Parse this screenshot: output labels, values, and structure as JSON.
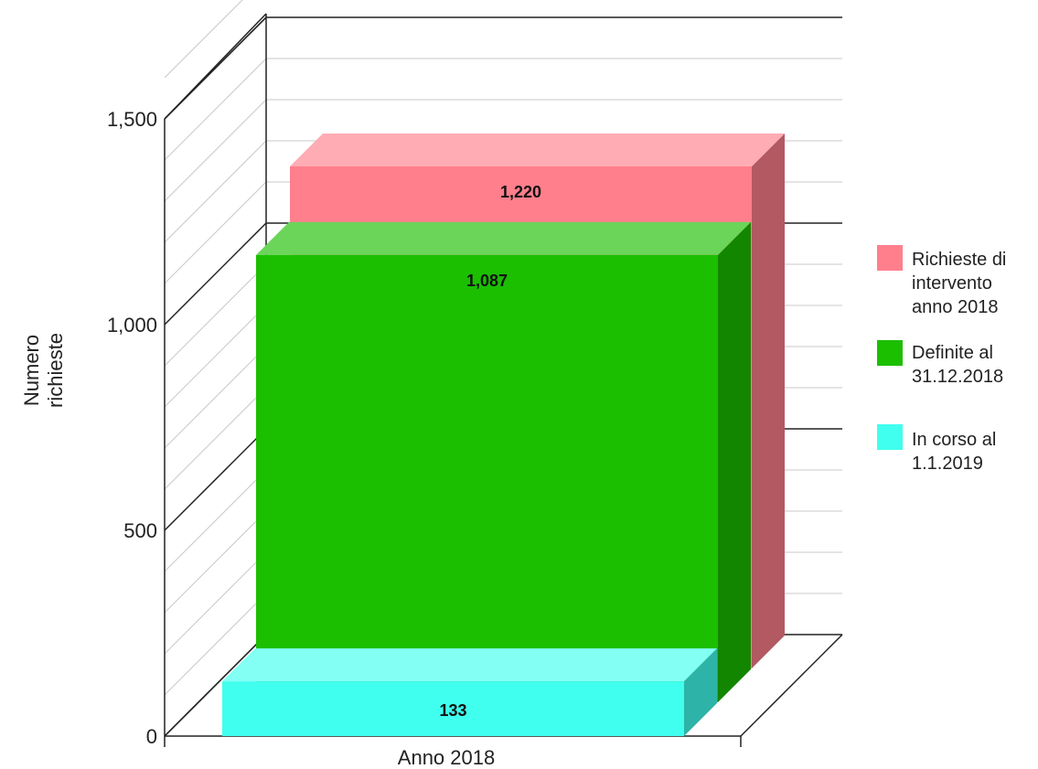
{
  "chart_data": {
    "type": "bar",
    "categories": [
      "Anno 2018"
    ],
    "series": [
      {
        "name": "Richieste di intervento anno 2018",
        "values": [
          1220
        ],
        "label": "1,220",
        "color": "#ff7f8c"
      },
      {
        "name": "Definite al 31.12.2018",
        "values": [
          1087
        ],
        "label": "1,087",
        "color": "#1bbf00"
      },
      {
        "name": "In corso al 1.1.2019",
        "values": [
          133
        ],
        "label": "133",
        "color": "#40ffee"
      }
    ],
    "ylabel_lines": [
      "Numero",
      "richieste"
    ],
    "ylim": [
      0,
      1500
    ],
    "yticks": [
      {
        "value": 0,
        "label": "0"
      },
      {
        "value": 500,
        "label": "500"
      },
      {
        "value": 1000,
        "label": "1,000"
      },
      {
        "value": 1500,
        "label": "1,500"
      }
    ],
    "grid": true,
    "legend_position": "right",
    "three_d": true
  }
}
